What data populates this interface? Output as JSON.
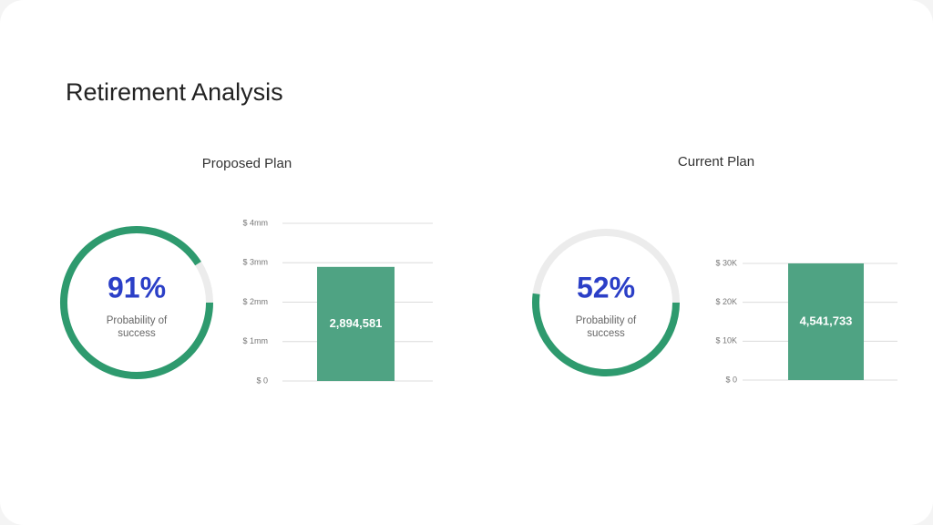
{
  "title": "Retirement Analysis",
  "chart_data": [
    {
      "type": "gauge",
      "title": "Proposed Plan",
      "values": [
        91
      ],
      "value_labels": [
        "91%"
      ],
      "label": "Probability of success",
      "ylim": [
        0,
        100
      ],
      "color": "#2e9a6e"
    },
    {
      "type": "bar",
      "values": [
        2894581
      ],
      "value_labels": [
        "2,894,581"
      ],
      "color": "#4fa383",
      "ylim": [
        0,
        4000000
      ],
      "yticks": [
        {
          "value": 0,
          "label": "$ 0"
        },
        {
          "value": 1000000,
          "label": "$ 1mm"
        },
        {
          "value": 2000000,
          "label": "$ 2mm"
        },
        {
          "value": 3000000,
          "label": "$ 3mm"
        },
        {
          "value": 4000000,
          "label": "$ 4mm"
        }
      ]
    },
    {
      "type": "gauge",
      "title": "Current Plan",
      "values": [
        52
      ],
      "value_labels": [
        "52%"
      ],
      "label": "Probability of success",
      "ylim": [
        0,
        100
      ],
      "color": "#2e9a6e"
    },
    {
      "type": "bar",
      "values": [
        4541733
      ],
      "value_labels": [
        "4,541,733"
      ],
      "color": "#4fa383",
      "ylim": [
        0,
        30000
      ],
      "yticks": [
        {
          "value": 0,
          "label": "$ 0"
        },
        {
          "value": 10000,
          "label": "$ 10K"
        },
        {
          "value": 20000,
          "label": "$ 20K"
        },
        {
          "value": 30000,
          "label": "$ 30K"
        }
      ]
    }
  ]
}
